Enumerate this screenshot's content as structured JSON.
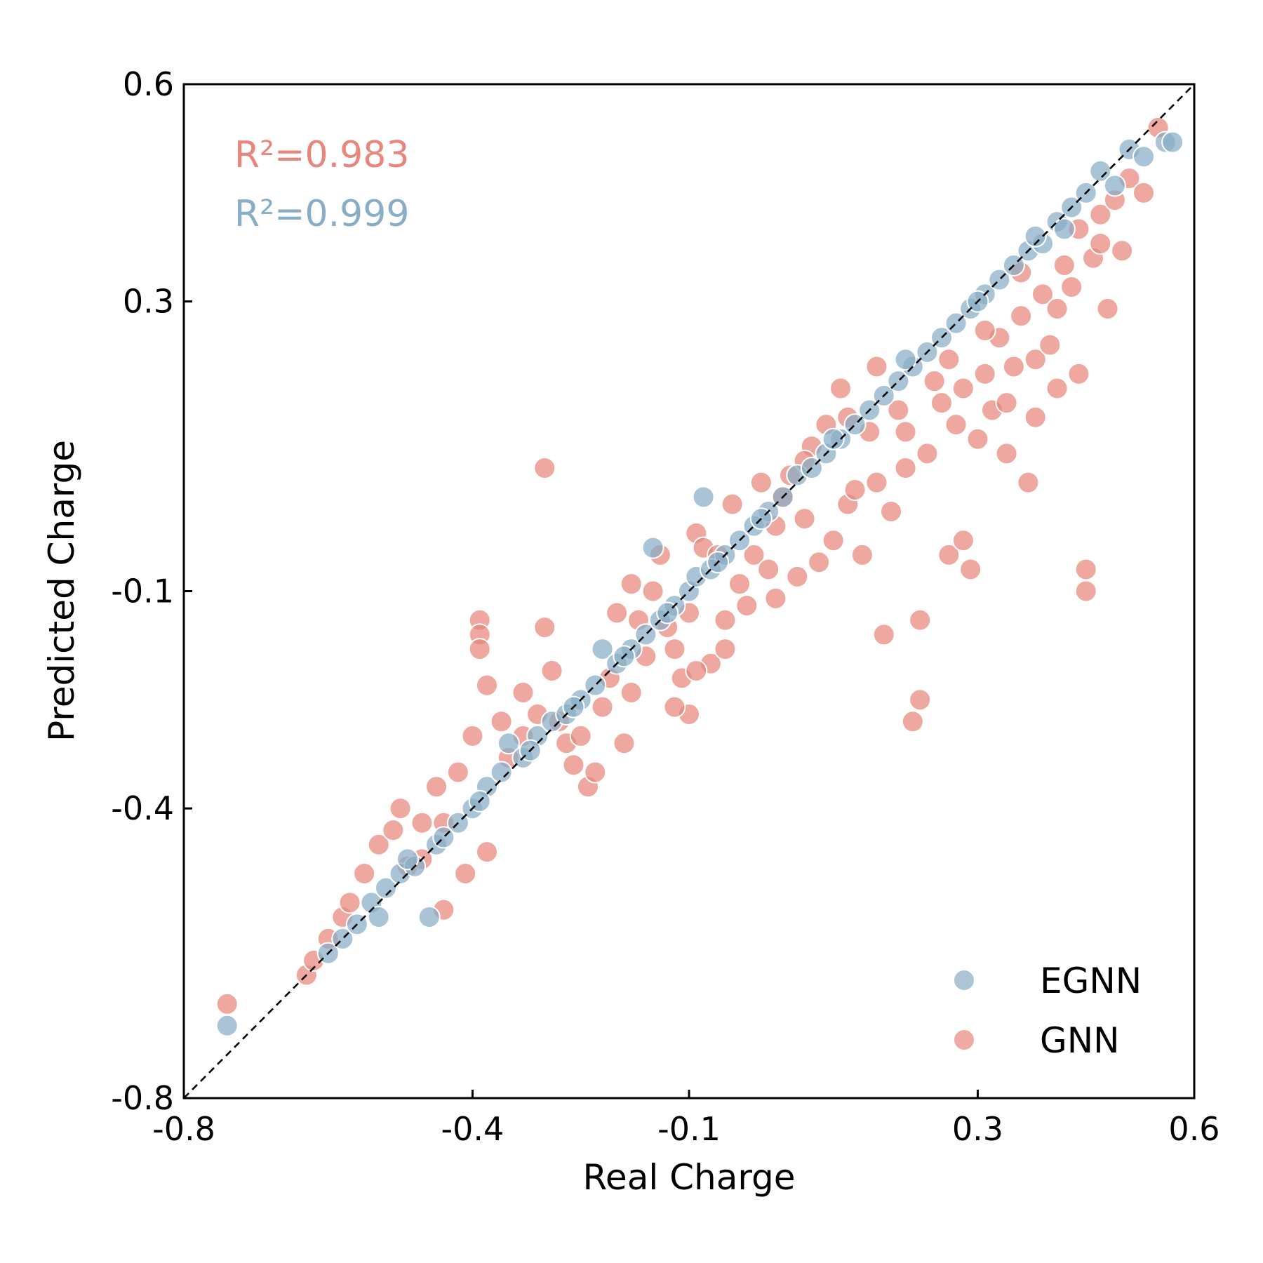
{
  "chart_data": {
    "type": "scatter",
    "xlabel": "Real Charge",
    "ylabel": "Predicted Charge",
    "xlim": [
      -0.8,
      0.6
    ],
    "ylim": [
      -0.8,
      0.6
    ],
    "x_ticks": [
      -0.8,
      -0.4,
      -0.1,
      0.3,
      0.6
    ],
    "x_tick_labels": [
      "-0.8",
      "-0.4",
      "-0.1",
      "0.3",
      "0.6"
    ],
    "y_ticks": [
      -0.8,
      -0.4,
      -0.1,
      0.3,
      0.6
    ],
    "y_tick_labels": [
      "-0.8",
      "-0.4",
      "-0.1",
      "0.3",
      "0.6"
    ],
    "grid": false,
    "reference_line": "y = x (dashed, black)",
    "legend": {
      "position": "bottom-right",
      "entries": [
        "EGNN",
        "GNN"
      ]
    },
    "annotations": [
      {
        "text": "R²=0.983",
        "color": "#e8867c",
        "series": "GNN"
      },
      {
        "text": "R²=0.999",
        "color": "#88adc6",
        "series": "EGNN"
      }
    ],
    "series": [
      {
        "name": "GNN",
        "color": "#e8867c",
        "description": "Points scatter around y=x with wider spread, especially below the diagonal for positive charges",
        "points": [
          [
            -0.74,
            -0.67
          ],
          [
            -0.63,
            -0.63
          ],
          [
            -0.62,
            -0.61
          ],
          [
            -0.6,
            -0.58
          ],
          [
            -0.58,
            -0.55
          ],
          [
            -0.57,
            -0.53
          ],
          [
            -0.55,
            -0.49
          ],
          [
            -0.53,
            -0.45
          ],
          [
            -0.51,
            -0.43
          ],
          [
            -0.49,
            -0.48
          ],
          [
            -0.47,
            -0.42
          ],
          [
            -0.45,
            -0.37
          ],
          [
            -0.44,
            -0.42
          ],
          [
            -0.42,
            -0.35
          ],
          [
            -0.4,
            -0.3
          ],
          [
            -0.39,
            -0.14
          ],
          [
            -0.39,
            -0.16
          ],
          [
            -0.39,
            -0.18
          ],
          [
            -0.38,
            -0.23
          ],
          [
            -0.38,
            -0.46
          ],
          [
            -0.36,
            -0.28
          ],
          [
            -0.35,
            -0.33
          ],
          [
            -0.33,
            -0.24
          ],
          [
            -0.33,
            -0.3
          ],
          [
            -0.31,
            -0.27
          ],
          [
            -0.3,
            -0.15
          ],
          [
            -0.3,
            0.07
          ],
          [
            -0.29,
            -0.21
          ],
          [
            -0.28,
            -0.28
          ],
          [
            -0.27,
            -0.31
          ],
          [
            -0.25,
            -0.3
          ],
          [
            -0.24,
            -0.37
          ],
          [
            -0.23,
            -0.35
          ],
          [
            -0.21,
            -0.22
          ],
          [
            -0.2,
            -0.13
          ],
          [
            -0.19,
            -0.31
          ],
          [
            -0.18,
            -0.09
          ],
          [
            -0.17,
            -0.14
          ],
          [
            -0.16,
            -0.19
          ],
          [
            -0.15,
            -0.1
          ],
          [
            -0.14,
            -0.05
          ],
          [
            -0.13,
            -0.15
          ],
          [
            -0.12,
            -0.18
          ],
          [
            -0.11,
            -0.22
          ],
          [
            -0.1,
            -0.13
          ],
          [
            -0.1,
            -0.27
          ],
          [
            -0.09,
            -0.02
          ],
          [
            -0.08,
            -0.04
          ],
          [
            -0.07,
            -0.2
          ],
          [
            -0.06,
            -0.05
          ],
          [
            -0.05,
            -0.14
          ],
          [
            -0.04,
            0.02
          ],
          [
            -0.03,
            -0.09
          ],
          [
            -0.02,
            -0.12
          ],
          [
            -0.01,
            -0.05
          ],
          [
            0.0,
            0.05
          ],
          [
            0.01,
            -0.07
          ],
          [
            0.02,
            -0.11
          ],
          [
            0.03,
            0.03
          ],
          [
            0.04,
            0.06
          ],
          [
            0.05,
            -0.08
          ],
          [
            0.06,
            0.0
          ],
          [
            0.07,
            0.1
          ],
          [
            0.08,
            -0.06
          ],
          [
            0.09,
            0.13
          ],
          [
            0.1,
            -0.03
          ],
          [
            0.11,
            0.18
          ],
          [
            0.12,
            0.02
          ],
          [
            0.13,
            0.04
          ],
          [
            0.14,
            -0.05
          ],
          [
            0.15,
            0.12
          ],
          [
            0.16,
            0.21
          ],
          [
            0.17,
            -0.16
          ],
          [
            0.18,
            0.01
          ],
          [
            0.19,
            0.15
          ],
          [
            0.2,
            0.07
          ],
          [
            0.21,
            -0.28
          ],
          [
            0.22,
            -0.14
          ],
          [
            0.22,
            -0.25
          ],
          [
            0.23,
            0.09
          ],
          [
            0.24,
            0.19
          ],
          [
            0.25,
            0.16
          ],
          [
            0.26,
            -0.05
          ],
          [
            0.27,
            0.13
          ],
          [
            0.28,
            0.18
          ],
          [
            0.28,
            -0.03
          ],
          [
            0.29,
            -0.07
          ],
          [
            0.3,
            0.11
          ],
          [
            0.31,
            0.2
          ],
          [
            0.32,
            0.15
          ],
          [
            0.33,
            0.25
          ],
          [
            0.34,
            0.16
          ],
          [
            0.35,
            0.21
          ],
          [
            0.36,
            0.28
          ],
          [
            0.37,
            0.05
          ],
          [
            0.38,
            0.22
          ],
          [
            0.39,
            0.31
          ],
          [
            0.4,
            0.24
          ],
          [
            0.41,
            0.18
          ],
          [
            0.42,
            0.35
          ],
          [
            0.43,
            0.32
          ],
          [
            0.44,
            0.4
          ],
          [
            0.45,
            -0.07
          ],
          [
            0.45,
            -0.1
          ],
          [
            0.46,
            0.36
          ],
          [
            0.47,
            0.42
          ],
          [
            0.48,
            0.29
          ],
          [
            0.49,
            0.44
          ],
          [
            0.5,
            0.37
          ],
          [
            0.51,
            0.47
          ],
          [
            0.53,
            0.45
          ],
          [
            0.55,
            0.54
          ],
          [
            -0.44,
            -0.54
          ],
          [
            -0.47,
            -0.47
          ],
          [
            -0.5,
            -0.4
          ],
          [
            -0.41,
            -0.49
          ],
          [
            -0.26,
            -0.34
          ],
          [
            -0.22,
            -0.26
          ],
          [
            -0.18,
            -0.24
          ],
          [
            -0.12,
            -0.26
          ],
          [
            -0.09,
            -0.21
          ],
          [
            -0.05,
            -0.18
          ],
          [
            0.02,
            -0.01
          ],
          [
            0.06,
            0.08
          ],
          [
            0.12,
            0.14
          ],
          [
            0.16,
            0.05
          ],
          [
            0.2,
            0.12
          ],
          [
            0.26,
            0.22
          ],
          [
            0.31,
            0.26
          ],
          [
            0.36,
            0.34
          ],
          [
            0.41,
            0.29
          ],
          [
            0.47,
            0.38
          ],
          [
            0.44,
            0.2
          ],
          [
            0.38,
            0.14
          ],
          [
            0.34,
            0.09
          ]
        ]
      },
      {
        "name": "EGNN",
        "color": "#88adc6",
        "description": "Points lie tightly along y=x",
        "points": [
          [
            -0.74,
            -0.7
          ],
          [
            -0.6,
            -0.6
          ],
          [
            -0.58,
            -0.58
          ],
          [
            -0.56,
            -0.56
          ],
          [
            -0.54,
            -0.53
          ],
          [
            -0.52,
            -0.51
          ],
          [
            -0.5,
            -0.49
          ],
          [
            -0.48,
            -0.48
          ],
          [
            -0.46,
            -0.55
          ],
          [
            -0.45,
            -0.45
          ],
          [
            -0.42,
            -0.42
          ],
          [
            -0.4,
            -0.4
          ],
          [
            -0.38,
            -0.37
          ],
          [
            -0.36,
            -0.35
          ],
          [
            -0.35,
            -0.31
          ],
          [
            -0.33,
            -0.33
          ],
          [
            -0.31,
            -0.3
          ],
          [
            -0.29,
            -0.28
          ],
          [
            -0.27,
            -0.27
          ],
          [
            -0.25,
            -0.25
          ],
          [
            -0.23,
            -0.23
          ],
          [
            -0.22,
            -0.18
          ],
          [
            -0.2,
            -0.2
          ],
          [
            -0.18,
            -0.18
          ],
          [
            -0.16,
            -0.16
          ],
          [
            -0.15,
            -0.04
          ],
          [
            -0.14,
            -0.14
          ],
          [
            -0.12,
            -0.12
          ],
          [
            -0.1,
            -0.1
          ],
          [
            -0.09,
            -0.08
          ],
          [
            -0.08,
            0.03
          ],
          [
            -0.07,
            -0.07
          ],
          [
            -0.05,
            -0.05
          ],
          [
            -0.03,
            -0.03
          ],
          [
            -0.01,
            -0.01
          ],
          [
            0.01,
            0.01
          ],
          [
            0.03,
            0.03
          ],
          [
            0.05,
            0.06
          ],
          [
            0.07,
            0.07
          ],
          [
            0.09,
            0.09
          ],
          [
            0.11,
            0.11
          ],
          [
            0.13,
            0.13
          ],
          [
            0.15,
            0.15
          ],
          [
            0.17,
            0.17
          ],
          [
            0.19,
            0.19
          ],
          [
            0.21,
            0.21
          ],
          [
            0.23,
            0.23
          ],
          [
            0.25,
            0.25
          ],
          [
            0.27,
            0.27
          ],
          [
            0.29,
            0.29
          ],
          [
            0.31,
            0.31
          ],
          [
            0.33,
            0.33
          ],
          [
            0.35,
            0.35
          ],
          [
            0.37,
            0.37
          ],
          [
            0.39,
            0.38
          ],
          [
            0.41,
            0.41
          ],
          [
            0.43,
            0.43
          ],
          [
            0.45,
            0.45
          ],
          [
            0.47,
            0.48
          ],
          [
            0.49,
            0.46
          ],
          [
            0.51,
            0.51
          ],
          [
            0.53,
            0.5
          ],
          [
            0.56,
            0.52
          ],
          [
            0.57,
            0.52
          ],
          [
            0.42,
            0.4
          ],
          [
            0.38,
            0.39
          ],
          [
            0.3,
            0.3
          ],
          [
            0.2,
            0.22
          ],
          [
            0.1,
            0.11
          ],
          [
            0.0,
            0.0
          ],
          [
            -0.06,
            -0.06
          ],
          [
            -0.13,
            -0.13
          ],
          [
            -0.19,
            -0.19
          ],
          [
            -0.26,
            -0.26
          ],
          [
            -0.32,
            -0.32
          ],
          [
            -0.39,
            -0.39
          ],
          [
            -0.44,
            -0.44
          ],
          [
            -0.49,
            -0.47
          ],
          [
            -0.53,
            -0.55
          ]
        ]
      }
    ]
  }
}
